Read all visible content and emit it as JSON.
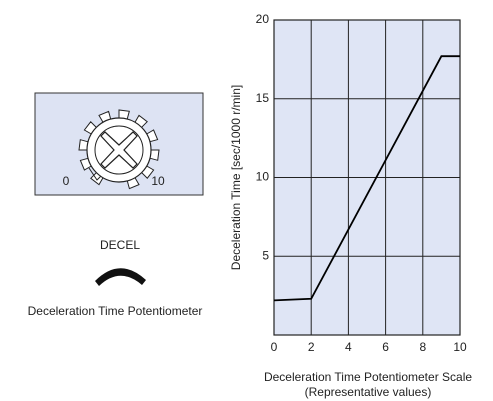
{
  "chart_data": {
    "type": "line",
    "y_label": "Deceleration Time  [sec/1000 r/min]",
    "x_label": "Deceleration Time Potentiometer Scale",
    "x_label_note": "(Representative values)",
    "x": [
      0,
      2,
      9,
      10
    ],
    "values": [
      2.2,
      2.3,
      17.7,
      17.7
    ],
    "color": "#000000",
    "xlim": [
      0,
      10
    ],
    "xticks": [
      0,
      2,
      4,
      6,
      8,
      10
    ],
    "ylim": [
      0,
      20
    ],
    "yticks": [
      5,
      10,
      15,
      20
    ],
    "grid": true
  },
  "potentiometer": {
    "scale_labels": [
      0,
      10
    ],
    "knob_label": "DECEL",
    "caption": "Deceleration Time Potentiometer"
  }
}
